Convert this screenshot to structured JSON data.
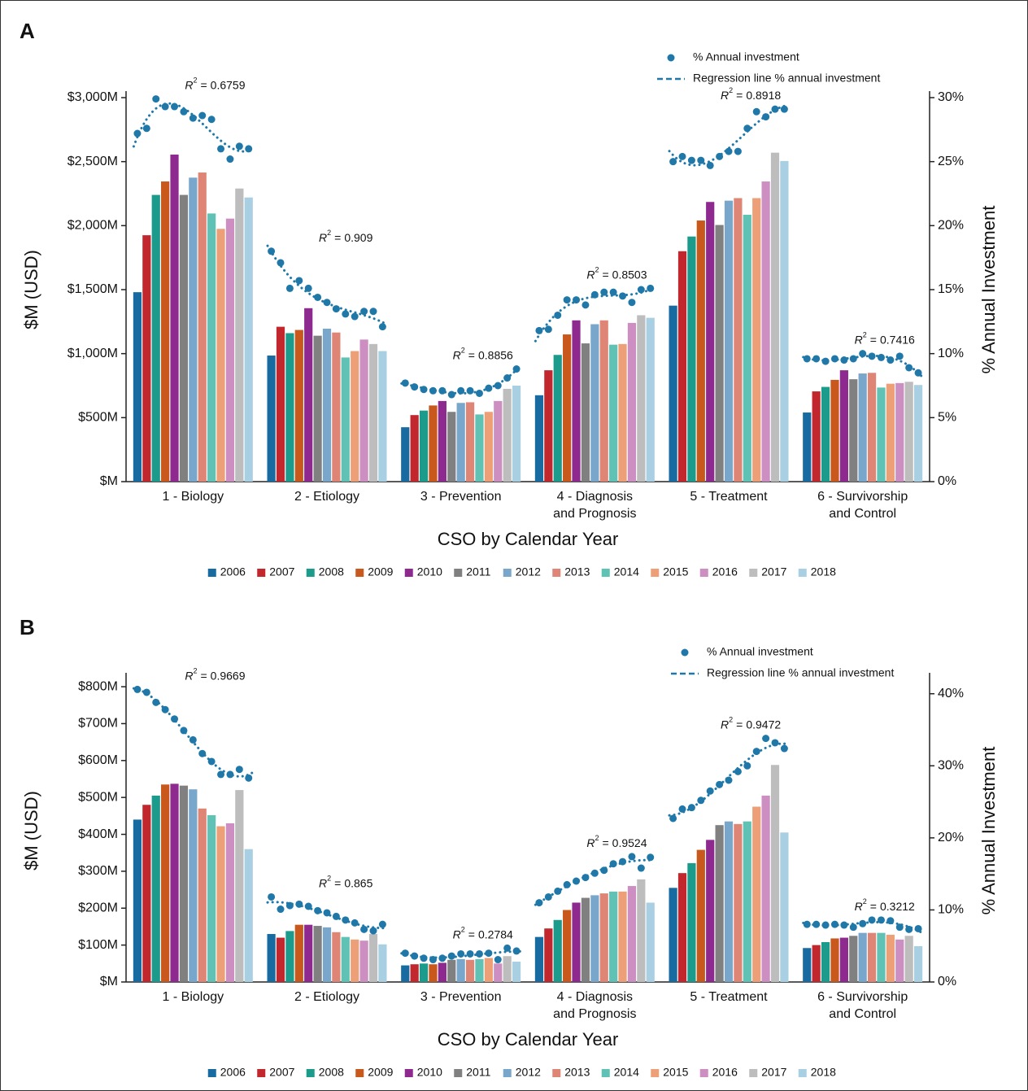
{
  "chart_data": [
    {
      "type": "bar",
      "panel_label": "A",
      "xlabel": "CSO by Calendar Year",
      "ylabel": "$M (USD)",
      "y2label": "% Annual Investment",
      "categories": [
        [
          "1 - Biology"
        ],
        [
          "2 - Etiology"
        ],
        [
          "3 - Prevention"
        ],
        [
          "4 - Diagnosis",
          "and Prognosis"
        ],
        [
          "5 - Treatment"
        ],
        [
          "6 - Survivorship",
          "and Control"
        ]
      ],
      "ylim": [
        0,
        3000
      ],
      "yticks": [
        {
          "value": 0,
          "label": "$M"
        },
        {
          "value": 500,
          "label": "$500M"
        },
        {
          "value": 1000,
          "label": "$1,000M"
        },
        {
          "value": 1500,
          "label": "$1,500M"
        },
        {
          "value": 2000,
          "label": "$2,000M"
        },
        {
          "value": 2500,
          "label": "$2,500M"
        },
        {
          "value": 3000,
          "label": "$3,000M"
        }
      ],
      "y2lim": [
        0,
        30
      ],
      "y2ticks": [
        {
          "value": 0,
          "label": "0%"
        },
        {
          "value": 5,
          "label": "5%"
        },
        {
          "value": 10,
          "label": "10%"
        },
        {
          "value": 15,
          "label": "15%"
        },
        {
          "value": 20,
          "label": "20%"
        },
        {
          "value": 25,
          "label": "25%"
        },
        {
          "value": 30,
          "label": "30%"
        }
      ],
      "series": [
        {
          "name": "2006",
          "color": "#176ba0",
          "values": [
            1480,
            985,
            425,
            675,
            1375,
            540
          ]
        },
        {
          "name": "2007",
          "color": "#c1272d",
          "values": [
            1925,
            1210,
            520,
            870,
            1800,
            705
          ]
        },
        {
          "name": "2008",
          "color": "#1a9b8c",
          "values": [
            2240,
            1160,
            555,
            990,
            1915,
            740
          ]
        },
        {
          "name": "2009",
          "color": "#c8581c",
          "values": [
            2345,
            1185,
            595,
            1150,
            2040,
            795
          ]
        },
        {
          "name": "2010",
          "color": "#8e2a8f",
          "values": [
            2555,
            1355,
            630,
            1260,
            2185,
            870
          ]
        },
        {
          "name": "2011",
          "color": "#808080",
          "values": [
            2240,
            1140,
            545,
            1080,
            2005,
            800
          ]
        },
        {
          "name": "2012",
          "color": "#79a7cc",
          "values": [
            2375,
            1195,
            615,
            1230,
            2195,
            845
          ]
        },
        {
          "name": "2013",
          "color": "#df8575",
          "values": [
            2415,
            1165,
            620,
            1260,
            2215,
            850
          ]
        },
        {
          "name": "2014",
          "color": "#5fc2b5",
          "values": [
            2095,
            970,
            525,
            1070,
            2085,
            735
          ]
        },
        {
          "name": "2015",
          "color": "#eda078",
          "values": [
            1975,
            1020,
            545,
            1075,
            2215,
            765
          ]
        },
        {
          "name": "2016",
          "color": "#cd8ec2",
          "values": [
            2055,
            1110,
            630,
            1240,
            2345,
            770
          ]
        },
        {
          "name": "2017",
          "color": "#bdbdbd",
          "values": [
            2290,
            1075,
            725,
            1300,
            2570,
            780
          ]
        },
        {
          "name": "2018",
          "color": "#a9cfe3",
          "values": [
            2220,
            1020,
            750,
            1280,
            2505,
            755
          ]
        }
      ],
      "scatter": {
        "type": "scatter",
        "name": "% Annual investment",
        "axis": "y2",
        "color": "#1f78a8",
        "values": [
          [
            27.2,
            27.6,
            29.9,
            29.3,
            29.3,
            28.9,
            28.4,
            28.6,
            28.3,
            26.0,
            25.2,
            26.2,
            26.0
          ],
          [
            18.0,
            17.1,
            15.1,
            15.7,
            15.1,
            14.4,
            14.0,
            13.5,
            13.1,
            12.9,
            13.3,
            13.3,
            12.1
          ],
          [
            7.7,
            7.4,
            7.2,
            7.1,
            7.1,
            6.8,
            7.1,
            7.1,
            6.9,
            7.3,
            7.5,
            8.1,
            8.8
          ],
          [
            11.8,
            11.9,
            13.0,
            14.2,
            14.2,
            13.8,
            14.6,
            14.8,
            14.8,
            14.5,
            14.0,
            15.0,
            15.1
          ],
          [
            25.0,
            25.4,
            25.1,
            25.1,
            24.7,
            25.4,
            25.8,
            25.8,
            27.6,
            28.9,
            28.5,
            29.1,
            29.1
          ],
          [
            9.6,
            9.6,
            9.4,
            9.6,
            9.5,
            9.6,
            10.0,
            9.8,
            9.7,
            9.5,
            9.8,
            8.9,
            8.5
          ]
        ]
      },
      "regression": {
        "name": "Regression line % annual investment",
        "symbol": "R",
        "exponent": "2",
        "equals": "=",
        "r_squared": [
          0.6759,
          0.909,
          0.8856,
          0.8503,
          0.8918,
          0.7416
        ]
      }
    },
    {
      "type": "bar",
      "panel_label": "B",
      "xlabel": "CSO by Calendar Year",
      "ylabel": "$M (USD)",
      "y2label": "% Annual Investment",
      "categories": [
        [
          "1 - Biology"
        ],
        [
          "2 - Etiology"
        ],
        [
          "3 - Prevention"
        ],
        [
          "4 - Diagnosis",
          "and Prognosis"
        ],
        [
          "5 - Treatment"
        ],
        [
          "6 - Survivorship",
          "and Control"
        ]
      ],
      "ylim": [
        0,
        820
      ],
      "yticks": [
        {
          "value": 0,
          "label": "$M"
        },
        {
          "value": 100,
          "label": "$100M"
        },
        {
          "value": 200,
          "label": "$200M"
        },
        {
          "value": 300,
          "label": "$300M"
        },
        {
          "value": 400,
          "label": "$400M"
        },
        {
          "value": 500,
          "label": "$500M"
        },
        {
          "value": 600,
          "label": "$600M"
        },
        {
          "value": 700,
          "label": "$700M"
        },
        {
          "value": 800,
          "label": "$800M"
        }
      ],
      "y2lim": [
        0,
        42
      ],
      "y2ticks": [
        {
          "value": 0,
          "label": "0%"
        },
        {
          "value": 10,
          "label": "10%"
        },
        {
          "value": 20,
          "label": "20%"
        },
        {
          "value": 30,
          "label": "30%"
        },
        {
          "value": 40,
          "label": "40%"
        }
      ],
      "series": [
        {
          "name": "2006",
          "color": "#176ba0",
          "values": [
            440,
            130,
            45,
            122,
            255,
            92
          ]
        },
        {
          "name": "2007",
          "color": "#c1272d",
          "values": [
            480,
            120,
            48,
            145,
            295,
            100
          ]
        },
        {
          "name": "2008",
          "color": "#1a9b8c",
          "values": [
            505,
            138,
            50,
            168,
            322,
            108
          ]
        },
        {
          "name": "2009",
          "color": "#c8581c",
          "values": [
            535,
            155,
            48,
            195,
            358,
            118
          ]
        },
        {
          "name": "2010",
          "color": "#8e2a8f",
          "values": [
            537,
            155,
            52,
            215,
            385,
            120
          ]
        },
        {
          "name": "2011",
          "color": "#808080",
          "values": [
            532,
            152,
            60,
            228,
            425,
            125
          ]
        },
        {
          "name": "2012",
          "color": "#79a7cc",
          "values": [
            522,
            148,
            62,
            235,
            435,
            133
          ]
        },
        {
          "name": "2013",
          "color": "#df8575",
          "values": [
            470,
            135,
            60,
            240,
            428,
            133
          ]
        },
        {
          "name": "2014",
          "color": "#5fc2b5",
          "values": [
            452,
            122,
            62,
            245,
            435,
            133
          ]
        },
        {
          "name": "2015",
          "color": "#eda078",
          "values": [
            422,
            115,
            65,
            245,
            475,
            128
          ]
        },
        {
          "name": "2016",
          "color": "#cd8ec2",
          "values": [
            430,
            112,
            50,
            260,
            505,
            115
          ]
        },
        {
          "name": "2017",
          "color": "#bdbdbd",
          "values": [
            520,
            130,
            70,
            278,
            588,
            125
          ]
        },
        {
          "name": "2018",
          "color": "#a9cfe3",
          "values": [
            360,
            102,
            55,
            215,
            405,
            97
          ]
        }
      ],
      "scatter": {
        "type": "scatter",
        "name": "% Annual investment",
        "axis": "y2",
        "color": "#1f78a8",
        "values": [
          [
            40.6,
            40.2,
            38.8,
            37.8,
            36.5,
            34.9,
            33.6,
            31.7,
            30.6,
            28.8,
            28.8,
            29.5,
            28.3
          ],
          [
            11.8,
            10.1,
            10.6,
            10.8,
            10.5,
            9.9,
            9.6,
            9.1,
            8.6,
            8.2,
            7.3,
            7.1,
            8.0
          ],
          [
            4.0,
            3.6,
            3.3,
            3.1,
            3.3,
            3.6,
            3.9,
            3.9,
            3.9,
            4.0,
            3.1,
            4.7,
            4.3
          ],
          [
            11.0,
            11.8,
            12.6,
            13.5,
            14.0,
            14.5,
            15.1,
            15.5,
            16.4,
            16.7,
            17.4,
            15.8,
            17.3
          ],
          [
            22.7,
            24.0,
            24.2,
            25.2,
            26.5,
            27.4,
            28.0,
            29.2,
            30.0,
            32.0,
            33.8,
            33.2,
            32.4
          ],
          [
            8.0,
            8.0,
            7.9,
            8.0,
            7.9,
            7.6,
            8.1,
            8.6,
            8.6,
            8.5,
            7.6,
            7.3,
            7.4
          ]
        ]
      },
      "regression": {
        "name": "Regression line % annual investment",
        "symbol": "R",
        "exponent": "2",
        "equals": "=",
        "r_squared": [
          0.9669,
          0.865,
          0.2784,
          0.9524,
          0.9472,
          0.3212
        ]
      }
    }
  ]
}
